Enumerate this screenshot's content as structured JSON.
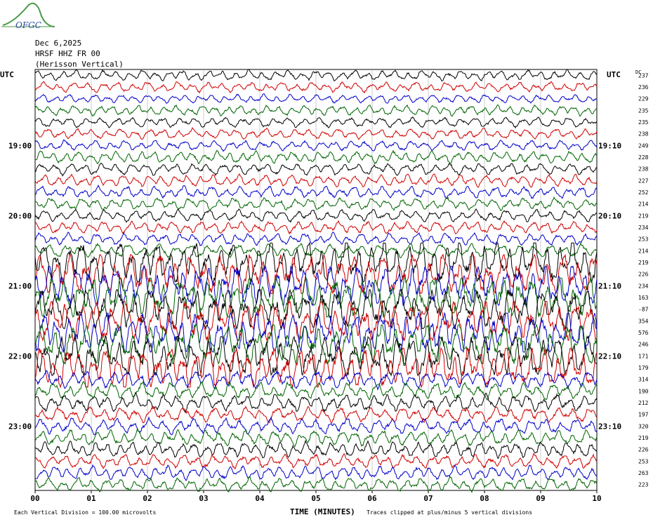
{
  "header": {
    "date": "Dec 6,2025",
    "station": "HRSF HHZ FR 00",
    "location": "(Herisson Vertical)",
    "utc_left": "UTC",
    "utc_right": "UTC",
    "dc_label": "DC",
    "logo_text": "OFGC"
  },
  "footer": {
    "scale_note": "Each Vertical Division =  100.00 microvolts",
    "clip_note": "Traces clipped at plus/minus 5 vertical divisions",
    "xlabel": "TIME (MINUTES)"
  },
  "colors": {
    "trace_cycle": [
      "#000000",
      "#d00000",
      "#0000c8",
      "#006400"
    ],
    "grid": "#aaaaaa"
  },
  "chart_data": {
    "type": "line",
    "xlabel": "TIME (MINUTES)",
    "xlim": [
      0,
      10
    ],
    "x_ticks": [
      "00",
      "01",
      "02",
      "03",
      "04",
      "05",
      "06",
      "07",
      "08",
      "09",
      "10"
    ],
    "rows_per_hour": 6,
    "row_count": 36,
    "left_time_labels": [
      {
        "row": 6,
        "label": "19:00"
      },
      {
        "row": 12,
        "label": "20:00"
      },
      {
        "row": 18,
        "label": "21:00"
      },
      {
        "row": 24,
        "label": "22:00"
      },
      {
        "row": 30,
        "label": "23:00"
      }
    ],
    "right_time_labels": [
      {
        "row": 6,
        "label": "19:10"
      },
      {
        "row": 12,
        "label": "20:10"
      },
      {
        "row": 18,
        "label": "21:10"
      },
      {
        "row": 24,
        "label": "22:10"
      },
      {
        "row": 30,
        "label": "23:10"
      }
    ],
    "dc_offsets": [
      237,
      236,
      229,
      235,
      235,
      238,
      249,
      228,
      238,
      227,
      252,
      214,
      219,
      234,
      253,
      214,
      219,
      226,
      234,
      163,
      -87,
      354,
      576,
      246,
      171,
      179,
      314,
      190,
      212,
      197,
      320,
      219,
      226,
      253,
      263,
      223
    ],
    "amplitude_divisions": [
      1.2,
      1.2,
      1.0,
      1.2,
      1.2,
      1.2,
      1.2,
      1.4,
      1.4,
      1.4,
      1.4,
      1.4,
      1.4,
      1.4,
      1.4,
      1.6,
      5,
      5,
      5,
      5,
      5,
      5,
      5,
      5,
      5,
      5,
      2.0,
      2.0,
      2.0,
      1.8,
      1.8,
      1.8,
      1.8,
      1.6,
      1.6,
      1.6
    ],
    "clip_divisions": 5
  }
}
